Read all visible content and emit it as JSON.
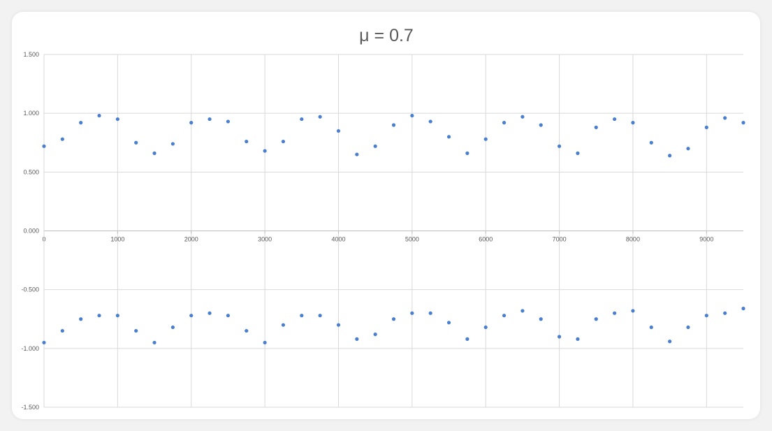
{
  "chart_data": {
    "type": "scatter",
    "title": "μ = 0.7",
    "xlabel": "",
    "ylabel": "",
    "xlim": [
      0,
      9500
    ],
    "ylim": [
      -1.5,
      1.5
    ],
    "x_ticks": [
      0,
      1000,
      2000,
      3000,
      4000,
      5000,
      6000,
      7000,
      8000,
      9000
    ],
    "x_tick_labels": [
      "0",
      "1000",
      "2000",
      "3000",
      "4000",
      "5000",
      "6000",
      "7000",
      "8000",
      "9000"
    ],
    "y_ticks": [
      1.5,
      1.0,
      0.5,
      0.0,
      -0.5,
      -1.0,
      -1.5
    ],
    "y_tick_labels": [
      "1.500",
      "1.000",
      "0.500",
      "0.000",
      "-0.500",
      "-1.000",
      "-1.500"
    ],
    "grid": true,
    "legend": "none",
    "marker_color": "#4a7fd0",
    "series": [
      {
        "x": [
          0,
          250,
          500,
          750,
          1000,
          1250,
          1500,
          1750,
          2000,
          2250,
          2500,
          2750,
          3000,
          3250,
          3500,
          3750,
          4000,
          4250,
          4500,
          4750,
          5000,
          5250,
          5500,
          5750,
          6000,
          6250,
          6500,
          6750,
          7000,
          7250,
          7500,
          7750,
          8000,
          8250,
          8500,
          8750,
          9000,
          9250,
          9500
        ],
        "y": [
          0.72,
          0.78,
          0.92,
          0.98,
          0.95,
          0.75,
          0.66,
          0.74,
          0.92,
          0.95,
          0.93,
          0.76,
          0.68,
          0.76,
          0.95,
          0.97,
          0.85,
          0.65,
          0.72,
          0.9,
          0.98,
          0.93,
          0.8,
          0.66,
          0.78,
          0.92,
          0.97,
          0.9,
          0.72,
          0.66,
          0.88,
          0.95,
          0.92,
          0.75,
          0.64,
          0.7,
          0.88,
          0.96,
          0.92
        ]
      },
      {
        "x": [
          0,
          250,
          500,
          750,
          1000,
          1250,
          1500,
          1750,
          2000,
          2250,
          2500,
          2750,
          3000,
          3250,
          3500,
          3750,
          4000,
          4250,
          4500,
          4750,
          5000,
          5250,
          5500,
          5750,
          6000,
          6250,
          6500,
          6750,
          7000,
          7250,
          7500,
          7750,
          8000,
          8250,
          8500,
          8750,
          9000,
          9250,
          9500
        ],
        "y": [
          -0.95,
          -0.85,
          -0.75,
          -0.72,
          -0.72,
          -0.85,
          -0.95,
          -0.82,
          -0.72,
          -0.7,
          -0.72,
          -0.85,
          -0.95,
          -0.8,
          -0.72,
          -0.72,
          -0.8,
          -0.92,
          -0.88,
          -0.75,
          -0.7,
          -0.7,
          -0.78,
          -0.92,
          -0.82,
          -0.72,
          -0.68,
          -0.75,
          -0.9,
          -0.92,
          -0.75,
          -0.7,
          -0.68,
          -0.82,
          -0.94,
          -0.82,
          -0.72,
          -0.7,
          -0.66
        ]
      }
    ]
  }
}
